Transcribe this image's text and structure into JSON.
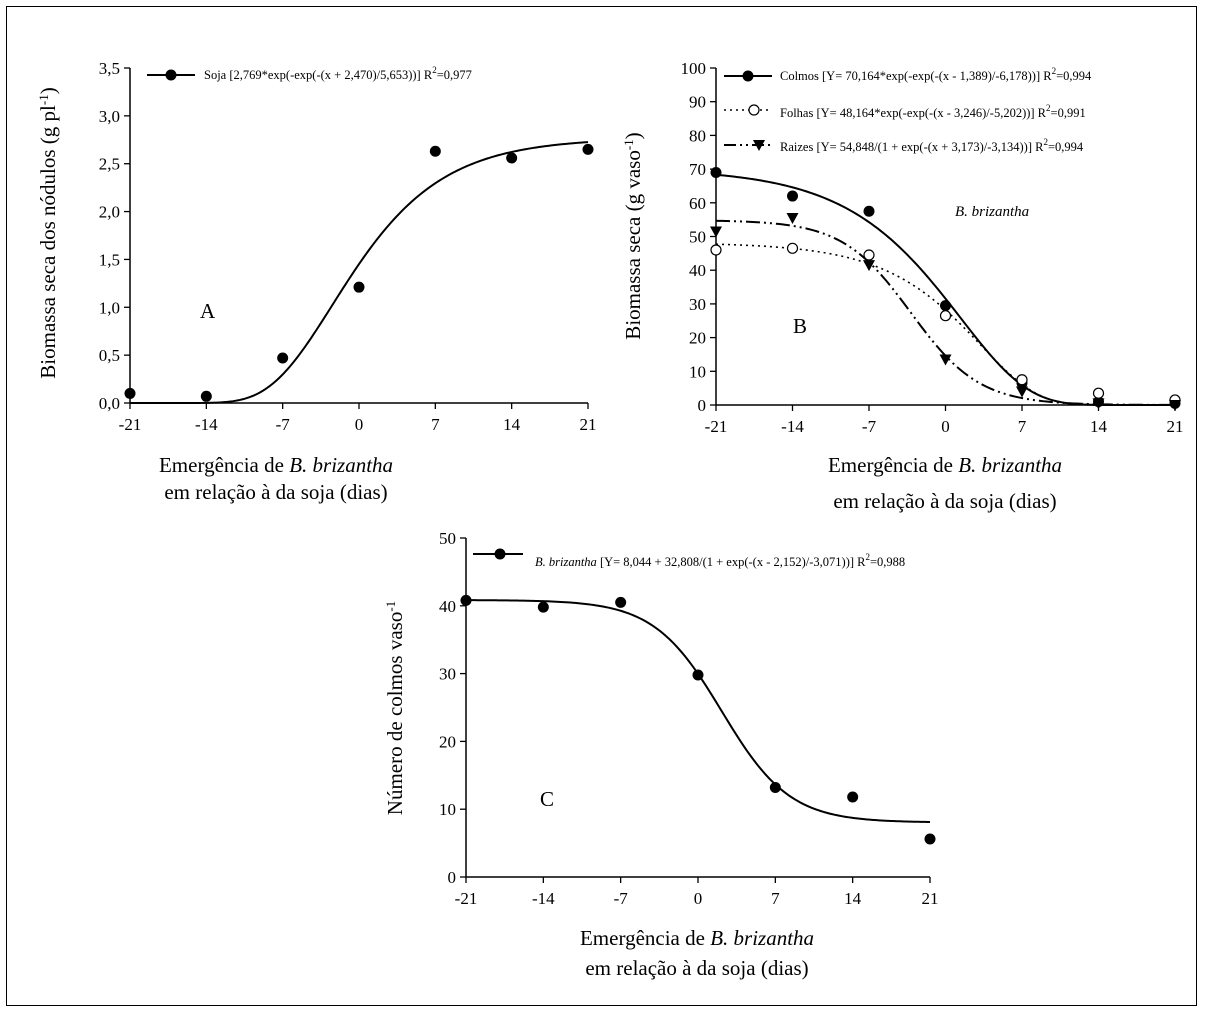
{
  "chart_data": [
    {
      "type": "scatter",
      "panel_label": "A",
      "xlabel_line1_prefix": "Emergência de ",
      "xlabel_line1_species": "B. brizantha",
      "xlabel_line2": "em relação à da soja  (dias)",
      "ylabel_main": "Biomassa seca dos nódulos (g pl",
      "ylabel_sup": "-1",
      "ylabel_close": ")",
      "xlim": [
        -21,
        21
      ],
      "ylim": [
        0,
        3.5
      ],
      "x_ticks": [
        "-21",
        "-14",
        "-7",
        "0",
        "7",
        "14",
        "21"
      ],
      "y_ticks": [
        "0,0",
        "0,5",
        "1,0",
        "1,5",
        "2,0",
        "2,5",
        "3,0",
        "3,5"
      ],
      "series": [
        {
          "name": "Soja [2,769*exp(-exp(-(x + 2,470)/5,653))] R",
          "r2_sup": "2",
          "r2_value": "=0,977",
          "marker": "filled-circle",
          "points": [
            [
              -21,
              0.1
            ],
            [
              -14,
              0.07
            ],
            [
              -7,
              0.47
            ],
            [
              0,
              1.21
            ],
            [
              7,
              2.63
            ],
            [
              14,
              2.56
            ],
            [
              21,
              2.65
            ]
          ]
        }
      ]
    },
    {
      "type": "scatter",
      "panel_label": "B",
      "annotation": "B. brizantha",
      "xlabel_line1_prefix": "Emergência de ",
      "xlabel_line1_species": "B. brizantha",
      "xlabel_line2": "em relação à da soja (dias)",
      "ylabel_main": "Biomassa seca (g vaso",
      "ylabel_sup": "-1",
      "ylabel_close": ")",
      "xlim": [
        -21,
        21
      ],
      "ylim": [
        0,
        100
      ],
      "x_ticks": [
        "-21",
        "-14",
        "-7",
        "0",
        "7",
        "14",
        "21"
      ],
      "y_ticks": [
        "0",
        "10",
        "20",
        "30",
        "40",
        "50",
        "60",
        "70",
        "80",
        "90",
        "100"
      ],
      "series": [
        {
          "name": "Colmos  [Y= 70,164*exp(-exp(-(x - 1,389)/-6,178))] R",
          "r2_sup": "2",
          "r2_value": "=0,994",
          "marker": "filled-circle",
          "points": [
            [
              -21,
              69
            ],
            [
              -14,
              62
            ],
            [
              -7,
              57.5
            ],
            [
              0,
              29.5
            ],
            [
              7,
              6.5
            ],
            [
              14,
              1
            ],
            [
              21,
              0.5
            ]
          ]
        },
        {
          "name": "Folhas [Y= 48,164*exp(-exp(-(x - 3,246)/-5,202))] R",
          "r2_sup": "2",
          "r2_value": "=0,991",
          "marker": "open-circle",
          "points": [
            [
              -21,
              46
            ],
            [
              -14,
              46.5
            ],
            [
              -7,
              44.5
            ],
            [
              0,
              26.5
            ],
            [
              7,
              7.5
            ],
            [
              14,
              3.5
            ],
            [
              21,
              1.5
            ]
          ]
        },
        {
          "name": "Raizes [Y= 54,848/(1 + exp(-(x + 3,173)/-3,134))] R",
          "r2_sup": "2",
          "r2_value": "=0,994",
          "marker": "filled-triangle-down",
          "points": [
            [
              -21,
              51.5
            ],
            [
              -14,
              55.5
            ],
            [
              -7,
              41.5
            ],
            [
              0,
              13.5
            ],
            [
              7,
              4
            ],
            [
              14,
              0.5
            ],
            [
              21,
              0
            ]
          ]
        }
      ]
    },
    {
      "type": "scatter",
      "panel_label": "C",
      "xlabel_line1_prefix": "Emergência de ",
      "xlabel_line1_species": "B. brizantha",
      "xlabel_line2": "em relação à da soja (dias)",
      "ylabel_main": "Número de colmos vaso",
      "ylabel_sup": "-1",
      "ylabel_close": "",
      "xlim": [
        -21,
        21
      ],
      "ylim": [
        0,
        50
      ],
      "x_ticks": [
        "-21",
        "-14",
        "-7",
        "0",
        "7",
        "14",
        "21"
      ],
      "y_ticks": [
        "0",
        "10",
        "20",
        "30",
        "40",
        "50"
      ],
      "series": [
        {
          "name_species": "B. brizantha",
          "name": " [Y= 8,044 + 32,808/(1 + exp(-(x - 2,152)/-3,071))] R",
          "r2_sup": "2",
          "r2_value": "=0,988",
          "marker": "filled-circle",
          "points": [
            [
              -21,
              40.8
            ],
            [
              -14,
              39.8
            ],
            [
              -7,
              40.5
            ],
            [
              0,
              29.8
            ],
            [
              7,
              13.2
            ],
            [
              14,
              11.8
            ],
            [
              21,
              5.6
            ]
          ]
        }
      ]
    }
  ]
}
